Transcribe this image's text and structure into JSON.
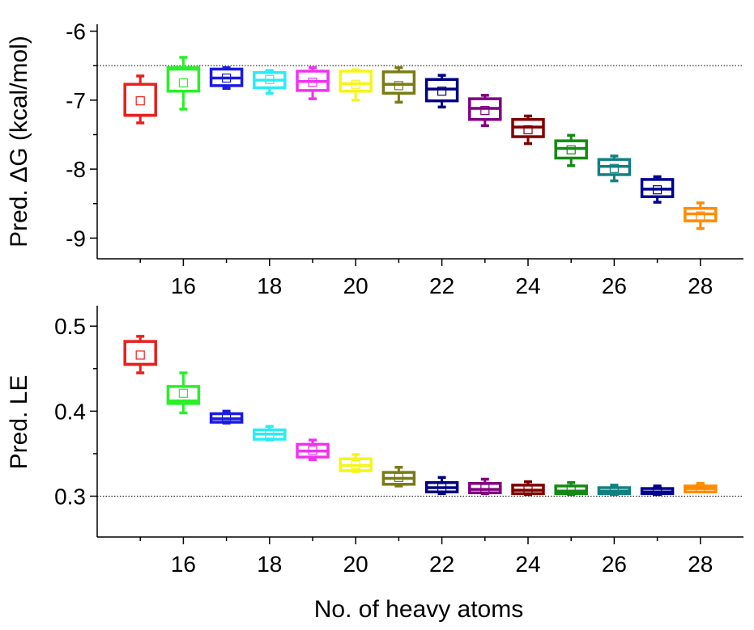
{
  "xlabel": "No. of heavy atoms",
  "chart_data": [
    {
      "type": "box",
      "ylabel": "Pred. ΔG (kcal/mol)",
      "xlim": [
        14.0,
        29.0
      ],
      "ylim": [
        -9.3,
        -5.9
      ],
      "xticks": [
        "16",
        "18",
        "20",
        "22",
        "24",
        "26",
        "28"
      ],
      "yticks": [
        "-6",
        "-7",
        "-8",
        "-9"
      ],
      "reference_line": -6.5,
      "boxes": [
        {
          "x": 15,
          "color": "#e8201c",
          "whisker_low": -7.33,
          "q1": -7.22,
          "median": -7.22,
          "q3": -6.77,
          "whisker_high": -6.65,
          "mean": -7.01
        },
        {
          "x": 16,
          "color": "#29f029",
          "whisker_low": -7.13,
          "q1": -6.87,
          "median": -6.55,
          "q3": -6.53,
          "whisker_high": -6.38,
          "mean": -6.75
        },
        {
          "x": 17,
          "color": "#1a1ae0",
          "whisker_low": -6.83,
          "q1": -6.79,
          "median": -6.68,
          "q3": -6.55,
          "whisker_high": -6.53,
          "mean": -6.68
        },
        {
          "x": 18,
          "color": "#29ecf5",
          "whisker_low": -6.9,
          "q1": -6.82,
          "median": -6.71,
          "q3": -6.6,
          "whisker_high": -6.57,
          "mean": -6.7
        },
        {
          "x": 19,
          "color": "#f032f0",
          "whisker_low": -6.98,
          "q1": -6.86,
          "median": -6.73,
          "q3": -6.58,
          "whisker_high": -6.53,
          "mean": -6.74
        },
        {
          "x": 20,
          "color": "#f5f51a",
          "whisker_low": -7.0,
          "q1": -6.87,
          "median": -6.76,
          "q3": -6.58,
          "whisker_high": -6.56,
          "mean": -6.77
        },
        {
          "x": 21,
          "color": "#7b7b16",
          "whisker_low": -7.03,
          "q1": -6.9,
          "median": -6.77,
          "q3": -6.59,
          "whisker_high": -6.53,
          "mean": -6.79
        },
        {
          "x": 22,
          "color": "#000080",
          "whisker_low": -7.1,
          "q1": -7.01,
          "median": -6.84,
          "q3": -6.7,
          "whisker_high": -6.64,
          "mean": -6.87
        },
        {
          "x": 23,
          "color": "#800080",
          "whisker_low": -7.37,
          "q1": -7.28,
          "median": -7.12,
          "q3": -6.98,
          "whisker_high": -6.93,
          "mean": -7.15
        },
        {
          "x": 24,
          "color": "#800000",
          "whisker_low": -7.63,
          "q1": -7.53,
          "median": -7.39,
          "q3": -7.28,
          "whisker_high": -7.23,
          "mean": -7.43
        },
        {
          "x": 25,
          "color": "#138a13",
          "whisker_low": -7.95,
          "q1": -7.84,
          "median": -7.7,
          "q3": -7.59,
          "whisker_high": -7.51,
          "mean": -7.72
        },
        {
          "x": 26,
          "color": "#138080",
          "whisker_low": -8.17,
          "q1": -8.08,
          "median": -7.96,
          "q3": -7.86,
          "whisker_high": -7.81,
          "mean": -7.99
        },
        {
          "x": 27,
          "color": "#000090",
          "whisker_low": -8.48,
          "q1": -8.4,
          "median": -8.29,
          "q3": -8.15,
          "whisker_high": -8.11,
          "mean": -8.3
        },
        {
          "x": 28,
          "color": "#ff8c00",
          "whisker_low": -8.86,
          "q1": -8.75,
          "median": -8.65,
          "q3": -8.57,
          "whisker_high": -8.49,
          "mean": -8.68
        }
      ]
    },
    {
      "type": "box",
      "ylabel": "Pred. LE",
      "xlim": [
        14.0,
        29.0
      ],
      "ylim": [
        0.252,
        0.524
      ],
      "xticks": [
        "16",
        "18",
        "20",
        "22",
        "24",
        "26",
        "28"
      ],
      "yticks": [
        "0.3",
        "0.4",
        "0.5"
      ],
      "reference_line": 0.3,
      "boxes": [
        {
          "x": 15,
          "color": "#e8201c",
          "whisker_low": 0.445,
          "q1": 0.455,
          "median": 0.455,
          "q3": 0.482,
          "whisker_high": 0.488,
          "mean": 0.466
        },
        {
          "x": 16,
          "color": "#29f029",
          "whisker_low": 0.398,
          "q1": 0.409,
          "median": 0.412,
          "q3": 0.429,
          "whisker_high": 0.445,
          "mean": 0.421
        },
        {
          "x": 17,
          "color": "#1a1ae0",
          "whisker_low": 0.386,
          "q1": 0.387,
          "median": 0.391,
          "q3": 0.397,
          "whisker_high": 0.4,
          "mean": 0.393
        },
        {
          "x": 18,
          "color": "#29ecf5",
          "whisker_low": 0.366,
          "q1": 0.367,
          "median": 0.373,
          "q3": 0.378,
          "whisker_high": 0.382,
          "mean": 0.373
        },
        {
          "x": 19,
          "color": "#f032f0",
          "whisker_low": 0.343,
          "q1": 0.346,
          "median": 0.353,
          "q3": 0.361,
          "whisker_high": 0.366,
          "mean": 0.354
        },
        {
          "x": 20,
          "color": "#f5f51a",
          "whisker_low": 0.329,
          "q1": 0.33,
          "median": 0.336,
          "q3": 0.344,
          "whisker_high": 0.349,
          "mean": 0.337
        },
        {
          "x": 21,
          "color": "#7b7b16",
          "whisker_low": 0.312,
          "q1": 0.314,
          "median": 0.321,
          "q3": 0.328,
          "whisker_high": 0.334,
          "mean": 0.322
        },
        {
          "x": 22,
          "color": "#000080",
          "whisker_low": 0.303,
          "q1": 0.305,
          "median": 0.31,
          "q3": 0.316,
          "whisker_high": 0.322,
          "mean": 0.31
        },
        {
          "x": 23,
          "color": "#800080",
          "whisker_low": 0.303,
          "q1": 0.304,
          "median": 0.308,
          "q3": 0.315,
          "whisker_high": 0.32,
          "mean": 0.309
        },
        {
          "x": 24,
          "color": "#800000",
          "whisker_low": 0.302,
          "q1": 0.303,
          "median": 0.307,
          "q3": 0.313,
          "whisker_high": 0.317,
          "mean": 0.308
        },
        {
          "x": 25,
          "color": "#138a13",
          "whisker_low": 0.302,
          "q1": 0.303,
          "median": 0.306,
          "q3": 0.312,
          "whisker_high": 0.316,
          "mean": 0.308
        },
        {
          "x": 26,
          "color": "#138080",
          "whisker_low": 0.302,
          "q1": 0.303,
          "median": 0.306,
          "q3": 0.31,
          "whisker_high": 0.313,
          "mean": 0.306
        },
        {
          "x": 27,
          "color": "#000090",
          "whisker_low": 0.302,
          "q1": 0.303,
          "median": 0.305,
          "q3": 0.309,
          "whisker_high": 0.312,
          "mean": 0.306
        },
        {
          "x": 28,
          "color": "#ff8c00",
          "whisker_low": 0.305,
          "q1": 0.305,
          "median": 0.309,
          "q3": 0.312,
          "whisker_high": 0.315,
          "mean": 0.309
        }
      ]
    }
  ]
}
